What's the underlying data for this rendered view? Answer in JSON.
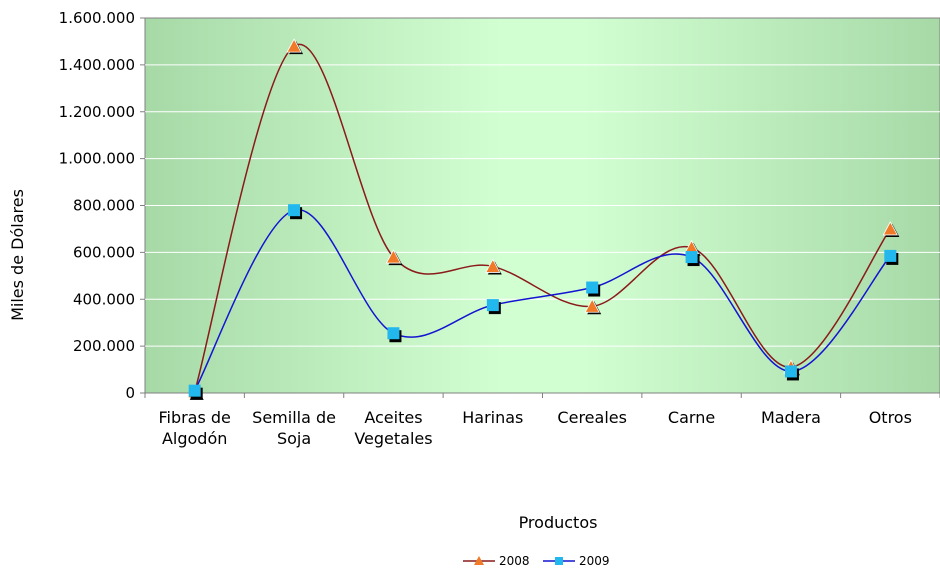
{
  "chart_data": {
    "type": "line",
    "title": "",
    "xlabel": "Productos",
    "ylabel": "Miles de Dólares",
    "ylim": [
      0,
      1600000
    ],
    "yticks": [
      {
        "value": 0,
        "label": "0"
      },
      {
        "value": 200000,
        "label": "200.000"
      },
      {
        "value": 400000,
        "label": "400.000"
      },
      {
        "value": 600000,
        "label": "600.000"
      },
      {
        "value": 800000,
        "label": "800.000"
      },
      {
        "value": 1000000,
        "label": "1.000.000"
      },
      {
        "value": 1200000,
        "label": "1.200.000"
      },
      {
        "value": 1400000,
        "label": "1.400.000"
      },
      {
        "value": 1600000,
        "label": "1.600.000"
      }
    ],
    "categories": [
      [
        "Fibras de",
        "Algodón"
      ],
      [
        "Semilla de",
        "Soja"
      ],
      [
        "Aceites",
        "Vegetales"
      ],
      [
        "Harinas"
      ],
      [
        "Cereales"
      ],
      [
        "Carne"
      ],
      [
        "Madera"
      ],
      [
        "Otros"
      ]
    ],
    "grid": true,
    "smooth": true,
    "legend_position": "bottom",
    "series": [
      {
        "name": "2008",
        "line_color": "#8B1A1A",
        "marker": "triangle",
        "marker_color": "#F07A28",
        "values": [
          5000,
          1480000,
          580000,
          540000,
          370000,
          620000,
          110000,
          700000
        ]
      },
      {
        "name": "2009",
        "line_color": "#1414D2",
        "marker": "square",
        "marker_color": "#22B8EE",
        "values": [
          10000,
          780000,
          255000,
          375000,
          450000,
          580000,
          92000,
          585000
        ]
      }
    ]
  }
}
